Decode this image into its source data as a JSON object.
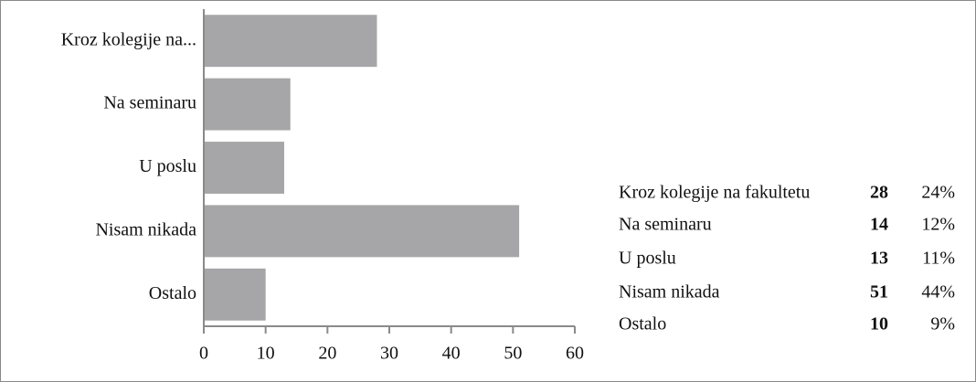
{
  "chart_data": {
    "type": "bar",
    "orientation": "horizontal",
    "categories": [
      "Kroz kolegije na...",
      "Na seminaru",
      "U poslu",
      "Nisam nikada",
      "Ostalo"
    ],
    "values": [
      28,
      14,
      13,
      51,
      10
    ],
    "color": "#a6a6a8",
    "xlim": [
      0,
      60
    ],
    "xticks": [
      0,
      10,
      20,
      30,
      40,
      50,
      60
    ],
    "grid": false
  },
  "table": {
    "rows": [
      {
        "name": "Kroz kolegije na fakultetu",
        "share": "24%"
      },
      {
        "name": "Na seminaru",
        "share": "12%"
      },
      {
        "name": "U poslu",
        "share": "11%"
      },
      {
        "name": "Nisam nikada",
        "share": "44%"
      },
      {
        "name": "Ostalo",
        "share": "9%"
      }
    ]
  }
}
